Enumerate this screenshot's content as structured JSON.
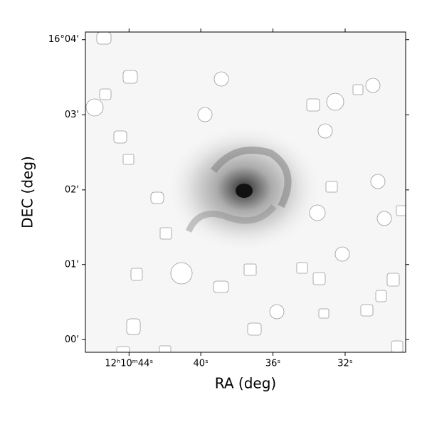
{
  "chart_data": {
    "type": "image",
    "xlabel": "RA (deg)",
    "ylabel": "DEC (deg)",
    "xlim": [
      182.6934,
      182.6193
    ],
    "ylim": [
      15.9972,
      16.0684
    ],
    "xticks": [
      {
        "value": 182.6833,
        "label": "12ʰ10ᵐ44ˢ"
      },
      {
        "value": 182.6667,
        "label": "40ˢ"
      },
      {
        "value": 182.65,
        "label": "36ˢ"
      },
      {
        "value": 182.6333,
        "label": "32ˢ"
      }
    ],
    "yticks": [
      {
        "value": 16.0667,
        "label": "16°04'"
      },
      {
        "value": 16.05,
        "label": "03'"
      },
      {
        "value": 16.0333,
        "label": "02'"
      },
      {
        "value": 16.0167,
        "label": "01'"
      },
      {
        "value": 16.0,
        "label": "00'"
      }
    ]
  }
}
